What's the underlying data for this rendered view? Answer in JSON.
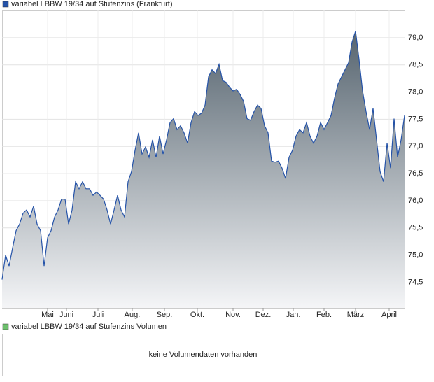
{
  "chart_data": [
    {
      "type": "area",
      "series": [
        {
          "name": "variabel LBBW 19/34 auf Stufenzins (Frankfurt)",
          "color": "#2553a8",
          "values": [
            74.55,
            75.0,
            74.8,
            75.13,
            75.45,
            75.57,
            75.77,
            75.83,
            75.7,
            75.9,
            75.57,
            75.45,
            74.8,
            75.32,
            75.45,
            75.7,
            75.83,
            76.03,
            76.03,
            75.57,
            75.83,
            76.35,
            76.22,
            76.35,
            76.22,
            76.22,
            76.1,
            76.16,
            76.1,
            76.03,
            75.83,
            75.57,
            75.83,
            76.1,
            75.83,
            75.7,
            76.35,
            76.54,
            76.93,
            77.25,
            76.86,
            76.99,
            76.8,
            77.12,
            76.8,
            77.19,
            76.86,
            77.12,
            77.44,
            77.51,
            77.31,
            77.38,
            77.25,
            77.06,
            77.44,
            77.64,
            77.57,
            77.61,
            77.76,
            78.28,
            78.41,
            78.34,
            78.51,
            78.21,
            78.18,
            78.09,
            78.02,
            78.05,
            77.96,
            77.83,
            77.51,
            77.48,
            77.64,
            77.76,
            77.7,
            77.38,
            77.25,
            76.73,
            76.71,
            76.73,
            76.6,
            76.41,
            76.8,
            76.93,
            77.19,
            77.31,
            77.25,
            77.44,
            77.19,
            77.06,
            77.19,
            77.44,
            77.31,
            77.44,
            77.57,
            77.89,
            78.15,
            78.28,
            78.41,
            78.54,
            78.92,
            79.12,
            78.6,
            78.02,
            77.64,
            77.31,
            77.7,
            77.12,
            76.54,
            76.35,
            77.06,
            76.6,
            77.51,
            76.8,
            77.12,
            77.57
          ]
        }
      ],
      "xlim": [
        0,
        115
      ],
      "xticks": [
        {
          "value": 13,
          "label": "Mai"
        },
        {
          "value": 18.4,
          "label": "Juni"
        },
        {
          "value": 27.4,
          "label": "Juli"
        },
        {
          "value": 37.2,
          "label": "Aug."
        },
        {
          "value": 46.4,
          "label": "Sep."
        },
        {
          "value": 55.8,
          "label": "Okt."
        },
        {
          "value": 66,
          "label": "Nov."
        },
        {
          "value": 74.6,
          "label": "Dez."
        },
        {
          "value": 83.2,
          "label": "Jan."
        },
        {
          "value": 92,
          "label": "Feb."
        },
        {
          "value": 101,
          "label": "März"
        },
        {
          "value": 110.6,
          "label": "April"
        }
      ],
      "ylim": [
        74.03,
        79.5
      ],
      "yticks": [
        {
          "value": 74.5,
          "label": "74,5"
        },
        {
          "value": 75,
          "label": "75,0"
        },
        {
          "value": 75.5,
          "label": "75,5"
        },
        {
          "value": 76,
          "label": "76,0"
        },
        {
          "value": 76.5,
          "label": "76,5"
        },
        {
          "value": 77,
          "label": "77,0"
        },
        {
          "value": 77.5,
          "label": "77,5"
        },
        {
          "value": 78,
          "label": "78,0"
        },
        {
          "value": 78.5,
          "label": "78,5"
        },
        {
          "value": 79,
          "label": "79,0"
        }
      ],
      "grid": true
    },
    {
      "type": "volume",
      "series": [
        {
          "name": "variabel LBBW 19/34 auf Stufenzins Volumen",
          "color": "#6cbf6c"
        }
      ],
      "annotation": "keine Volumendaten vorhanden"
    }
  ]
}
